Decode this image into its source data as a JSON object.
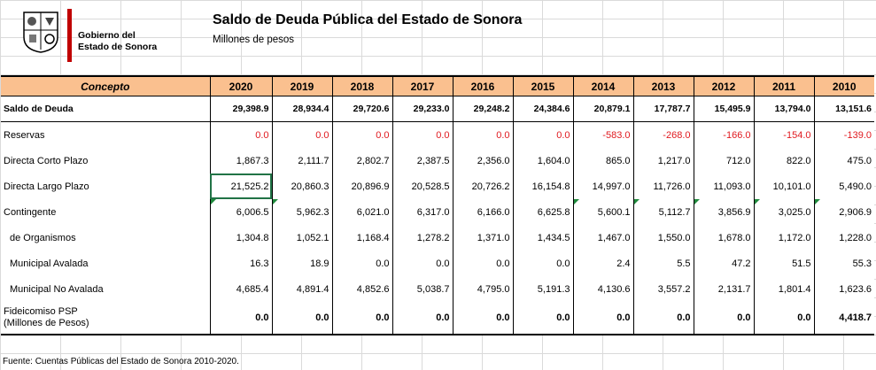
{
  "header": {
    "gov_line1": "Gobierno del",
    "gov_line2": "Estado de Sonora",
    "title": "Saldo de Deuda Pública del Estado de Sonora",
    "subtitle": "Millones de pesos"
  },
  "table": {
    "concept_header": "Concepto",
    "years": [
      "2020",
      "2019",
      "2018",
      "2017",
      "2016",
      "2015",
      "2014",
      "2013",
      "2012",
      "2011",
      "2010"
    ],
    "rows": [
      {
        "label": "Saldo de Deuda",
        "values": [
          "29,398.9",
          "28,934.4",
          "29,720.6",
          "29,233.0",
          "29,248.2",
          "24,384.6",
          "20,879.1",
          "17,787.7",
          "15,495.9",
          "13,794.0",
          "13,151.6"
        ]
      },
      {
        "label": "Reservas",
        "values": [
          "0.0",
          "0.0",
          "0.0",
          "0.0",
          "0.0",
          "0.0",
          "-583.0",
          "-268.0",
          "-166.0",
          "-154.0",
          "-139.0"
        ]
      },
      {
        "label": "Directa Corto Plazo",
        "values": [
          "1,867.3",
          "2,111.7",
          "2,802.7",
          "2,387.5",
          "2,356.0",
          "1,604.0",
          "865.0",
          "1,217.0",
          "712.0",
          "822.0",
          "475.0"
        ]
      },
      {
        "label": "Directa Largo Plazo",
        "values": [
          "21,525.2",
          "20,860.3",
          "20,896.9",
          "20,528.5",
          "20,726.2",
          "16,154.8",
          "14,997.0",
          "11,726.0",
          "11,093.0",
          "10,101.0",
          "5,490.0"
        ]
      },
      {
        "label": "Contingente",
        "values": [
          "6,006.5",
          "5,962.3",
          "6,021.0",
          "6,317.0",
          "6,166.0",
          "6,625.8",
          "5,600.1",
          "5,112.7",
          "3,856.9",
          "3,025.0",
          "2,906.9"
        ]
      },
      {
        "label": "de Organismos",
        "values": [
          "1,304.8",
          "1,052.1",
          "1,168.4",
          "1,278.2",
          "1,371.0",
          "1,434.5",
          "1,467.0",
          "1,550.0",
          "1,678.0",
          "1,172.0",
          "1,228.0"
        ]
      },
      {
        "label": "Municipal Avalada",
        "values": [
          "16.3",
          "18.9",
          "0.0",
          "0.0",
          "0.0",
          "0.0",
          "2.4",
          "5.5",
          "47.2",
          "51.5",
          "55.3"
        ]
      },
      {
        "label": "Municipal No Avalada",
        "values": [
          "4,685.4",
          "4,891.4",
          "4,852.6",
          "5,038.7",
          "4,795.0",
          "5,191.3",
          "4,130.6",
          "3,557.2",
          "2,131.7",
          "1,801.4",
          "1,623.6"
        ]
      },
      {
        "label": "Fideicomiso PSP",
        "label2": "(Millones de Pesos)",
        "values": [
          "0.0",
          "0.0",
          "0.0",
          "0.0",
          "0.0",
          "0.0",
          "0.0",
          "0.0",
          "0.0",
          "0.0",
          "4,418.7"
        ]
      }
    ]
  },
  "footer": "Fuente: Cuentas Públicas del Estado de Sonora 2010-2020.",
  "colors": {
    "header_fill": "#fac08f",
    "negative": "#e0191f",
    "title_bar": "#c00000",
    "selection": "#217346"
  }
}
